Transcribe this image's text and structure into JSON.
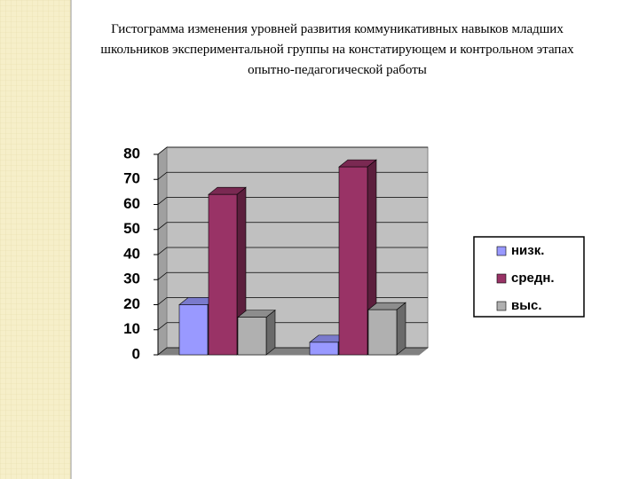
{
  "chart_data": {
    "type": "bar3d",
    "title": "Гистограмма изменения уровней  развития коммуникативных навыков младших школьников экспериментальной группы на констатирующем и контрольном этапах опытно-педагогической работы",
    "categories": [
      null,
      null
    ],
    "series": [
      {
        "name": "низк.",
        "color": "#9999ff",
        "values": [
          20,
          5
        ]
      },
      {
        "name": "средн.",
        "color": "#993366",
        "values": [
          64,
          75
        ]
      },
      {
        "name": "выс.",
        "color": "#b0b0b0",
        "values": [
          15,
          18
        ]
      }
    ],
    "ylim": [
      0,
      80
    ],
    "yticks": [
      0,
      10,
      20,
      30,
      40,
      50,
      60,
      70,
      80
    ],
    "grid": true,
    "legend": "right"
  }
}
